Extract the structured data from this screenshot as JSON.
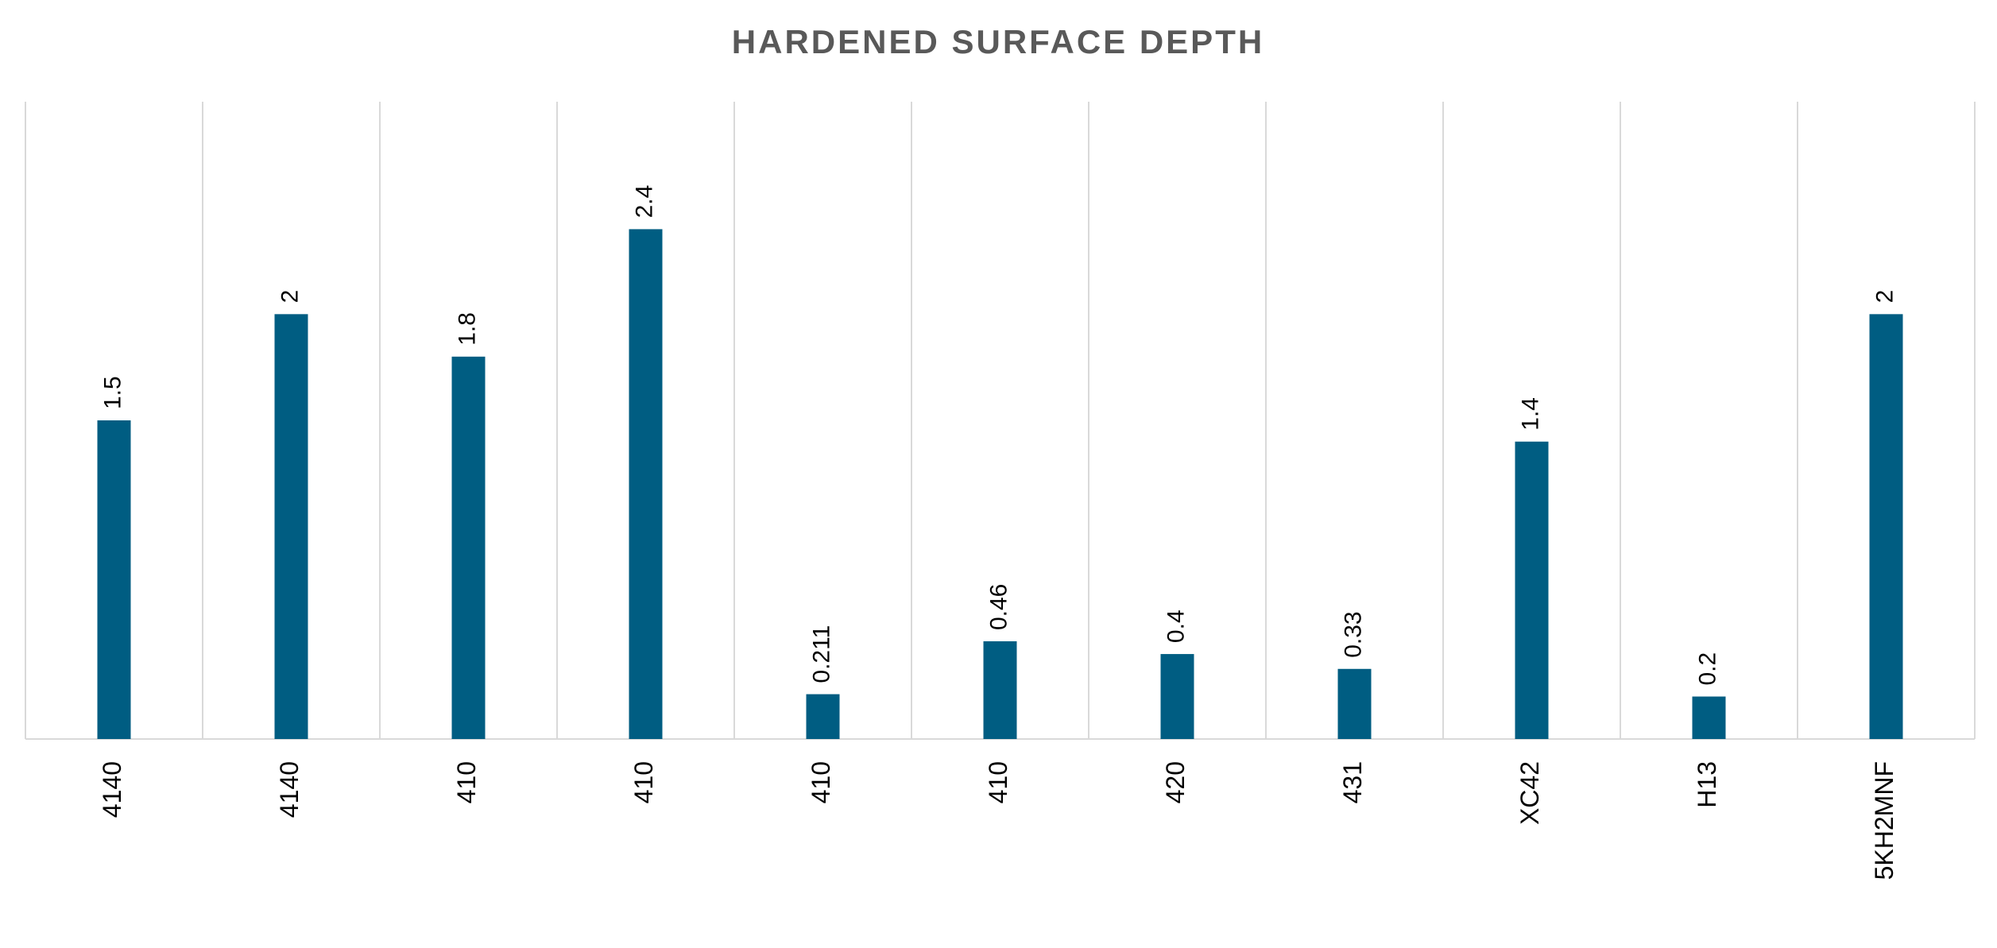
{
  "chart_data": {
    "type": "bar",
    "title": "HARDENED SURFACE DEPTH",
    "categories": [
      "4140",
      "4140",
      "410",
      "410",
      "410",
      "410",
      "420",
      "431",
      "XC42",
      "H13",
      "5KH2MNF"
    ],
    "values": [
      1.5,
      2,
      1.8,
      2.4,
      0.211,
      0.46,
      0.4,
      0.33,
      1.4,
      0.2,
      2
    ],
    "color": "#005d82",
    "ylim": [
      0,
      3
    ]
  }
}
